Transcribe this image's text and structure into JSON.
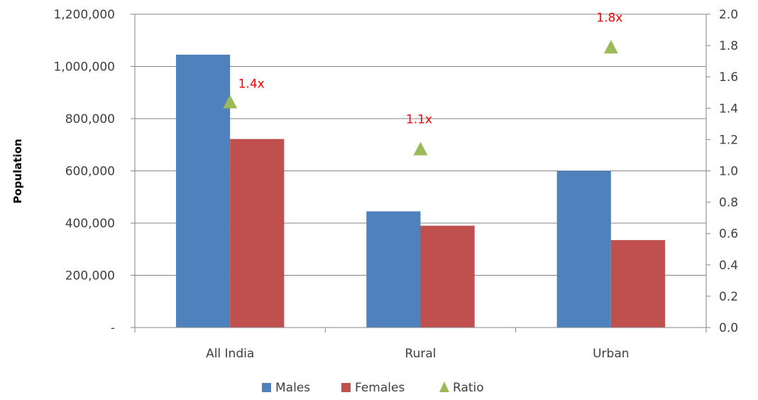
{
  "chart_data": {
    "type": "bar",
    "categories": [
      "All India",
      "Rural",
      "Urban"
    ],
    "series": [
      {
        "name": "Males",
        "axis": "left",
        "kind": "bar",
        "color": "#4f81bd",
        "values": [
          1045000,
          445000,
          600000
        ]
      },
      {
        "name": "Females",
        "axis": "left",
        "kind": "bar",
        "color": "#c0504d",
        "values": [
          722000,
          390000,
          335000
        ]
      },
      {
        "name": "Ratio",
        "axis": "right",
        "kind": "marker",
        "marker": "triangle",
        "color": "#9bbb59",
        "values": [
          1.44,
          1.14,
          1.79
        ],
        "labels": [
          "1.4x",
          "1.1x",
          "1.8x"
        ],
        "label_color": "#ff0000"
      }
    ],
    "title": "",
    "xlabel": "",
    "ylabel": "Population",
    "ylim": [
      0,
      1200000
    ],
    "y_ticks": [
      "-",
      "200,000",
      "400,000",
      "600,000",
      "800,000",
      "1,000,000",
      "1,200,000"
    ],
    "y2lim": [
      0,
      2.0
    ],
    "y2_ticks": [
      "0.0",
      "0.2",
      "0.4",
      "0.6",
      "0.8",
      "1.0",
      "1.2",
      "1.4",
      "1.6",
      "1.8",
      "2.0"
    ],
    "grid": true,
    "legend": "bottom"
  }
}
